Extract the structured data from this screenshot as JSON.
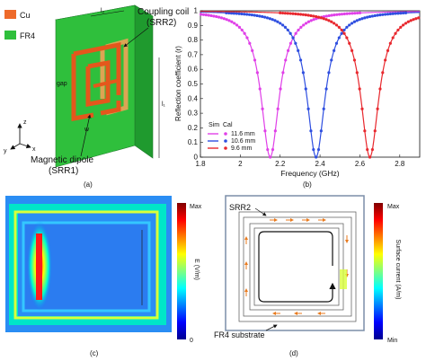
{
  "panel_a": {
    "legend": [
      {
        "label": "Cu",
        "color": "#ee6a2a"
      },
      {
        "label": "FR4",
        "color": "#2fbf3c"
      }
    ],
    "coupling_coil": [
      "Coupling coil",
      "(SRR2)"
    ],
    "magnetic_dipole": [
      "Magnetic dipole",
      "(SRR1)"
    ],
    "axes": {
      "z": "z",
      "y": "y",
      "x": "x"
    },
    "dims": {
      "l2": "l₂",
      "l1": "l₁",
      "gap": "gap",
      "w": "w"
    },
    "caption": "(a)"
  },
  "panel_b": {
    "caption": "(b)",
    "legend_header": {
      "sim": "Sim",
      "cal": "Cal"
    },
    "chart_data": {
      "type": "line",
      "xlabel": "Frequency (GHz)",
      "ylabel": "Reflection coefficient (r)",
      "xlim": [
        1.8,
        2.9
      ],
      "ylim": [
        0,
        1
      ],
      "xticks": [
        "1.8",
        "2",
        "2.2",
        "2.4",
        "2.6",
        "2.8"
      ],
      "yticks": [
        "0",
        "0.1",
        "0.2",
        "0.3",
        "0.4",
        "0.5",
        "0.6",
        "0.7",
        "0.8",
        "0.9",
        "1"
      ],
      "series": [
        {
          "name": "11.6 mm",
          "color": "#e040e8",
          "resonance": 2.15,
          "width": 0.055
        },
        {
          "name": "10.6 mm",
          "color": "#2f4fe0",
          "resonance": 2.38,
          "width": 0.055
        },
        {
          "name": "9.6 mm",
          "color": "#e8282e",
          "resonance": 2.65,
          "width": 0.055
        }
      ]
    }
  },
  "panel_c": {
    "caption": "(c)",
    "colorbar": {
      "max": "Max",
      "min": "0",
      "label": "E (V/m)"
    }
  },
  "panel_d": {
    "caption": "(d)",
    "srr2": "SRR2",
    "substrate": "FR4 substrate",
    "colorbar": {
      "max": "Max",
      "min": "Min",
      "label": "Surface current (A/m)"
    }
  }
}
